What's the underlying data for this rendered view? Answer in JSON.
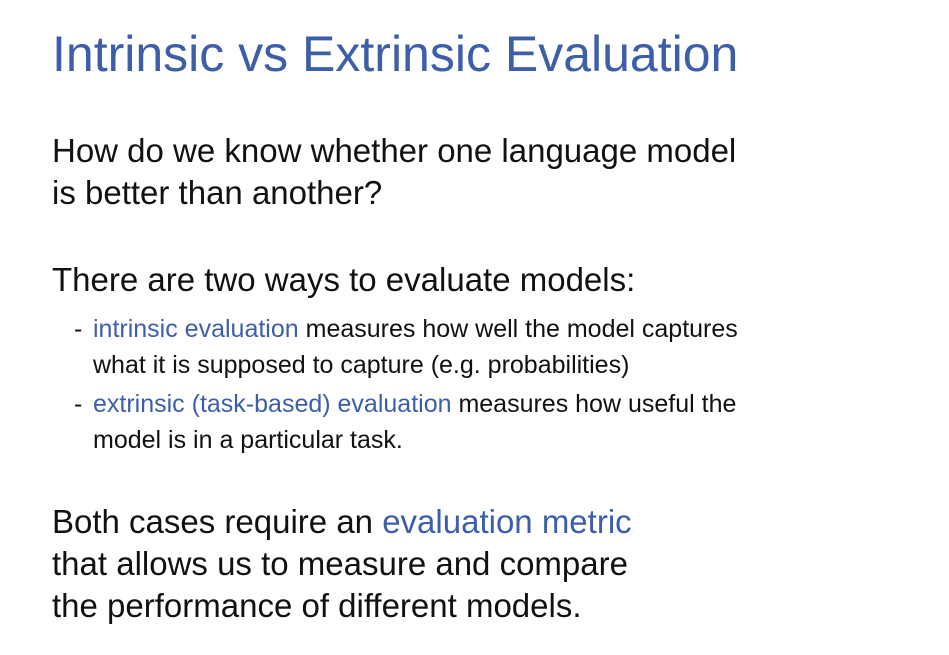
{
  "title": "Intrinsic vs Extrinsic Evaluation",
  "question": {
    "line1": "How do we know whether one language model",
    "line2": "is better than another?"
  },
  "ways": {
    "heading": "There are two ways to evaluate models:",
    "bullets": [
      {
        "marker": "-",
        "term": "intrinsic evaluation",
        "rest_line1": " measures how well the model captures",
        "line2": "what it is supposed to capture (e.g. probabilities)"
      },
      {
        "marker": "-",
        "term": "extrinsic (task-based) evaluation",
        "rest_line1": " measures how useful the",
        "line2": "model is in a particular task."
      }
    ]
  },
  "conclusion": {
    "line1_prefix": "Both cases require an ",
    "line1_term": "evaluation metric",
    "line2": "that allows us to measure and compare",
    "line3": "the performance of different models."
  },
  "colors": {
    "accent": "#3d5ea8",
    "text": "#111111",
    "background": "#ffffff"
  }
}
